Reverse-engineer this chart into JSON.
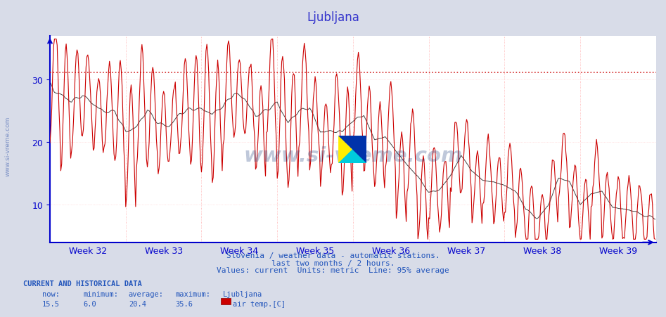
{
  "title": "Ljubljana",
  "title_color": "#3333cc",
  "title_fontsize": 12,
  "bg_color": "#d8dce8",
  "plot_bg_color": "#ffffff",
  "grid_color_v": "#ffaaaa",
  "grid_color_h": "#ffcccc",
  "line_color": "#cc0000",
  "line2_color": "#444444",
  "avg_line_color": "#cc0000",
  "avg_line_y": 31.2,
  "axis_color": "#0000cc",
  "tick_color": "#0000cc",
  "week_labels": [
    "Week 32",
    "Week 33",
    "Week 34",
    "Week 35",
    "Week 36",
    "Week 37",
    "Week 38",
    "Week 39"
  ],
  "week_tick_positions": [
    42,
    126,
    210,
    294,
    378,
    462,
    546,
    630
  ],
  "yticks": [
    10,
    20,
    30
  ],
  "ymin": 4,
  "ymax": 37,
  "xmin": 0,
  "xmax": 672,
  "footer_line1": "Slovenia / weather data - automatic stations.",
  "footer_line2": "last two months / 2 hours.",
  "footer_line3": "Values: current  Units: metric  Line: 95% average",
  "footer_color": "#2255bb",
  "stats_label": "CURRENT AND HISTORICAL DATA",
  "stats_color": "#2255bb",
  "stats_now": "15.5",
  "stats_min": "6.0",
  "stats_avg": "20.4",
  "stats_max": "35.6",
  "legend_sublabel": "air temp.[C]",
  "watermark": "www.si-vreme.com",
  "watermark_color": "#1a3a7a",
  "sidebar_text": "www.si-vreme.com"
}
